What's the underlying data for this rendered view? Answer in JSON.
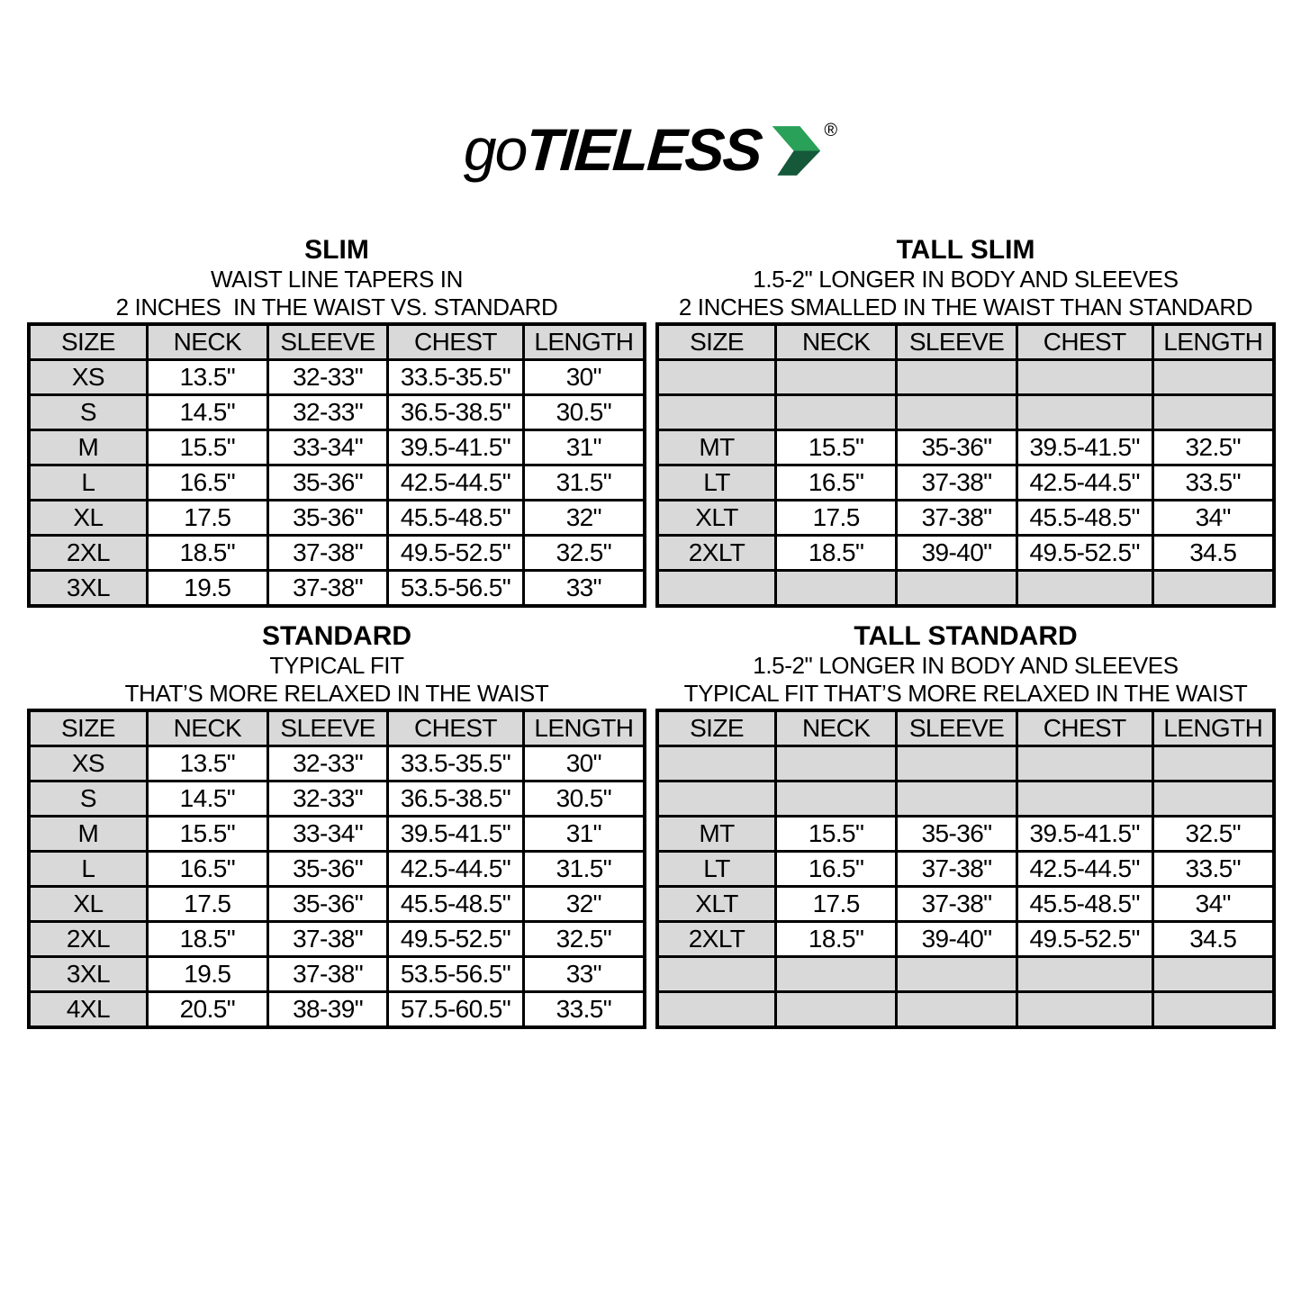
{
  "logo": {
    "go": "go",
    "tieless": "TIELESS",
    "registered": "®"
  },
  "colors": {
    "arrow_top": "#2aa158",
    "arrow_bottom": "#15593a",
    "row_shade": "#d9d9d9",
    "table_border": "#000000"
  },
  "columns": [
    "SIZE",
    "NECK",
    "SLEEVE",
    "CHEST",
    "LENGTH"
  ],
  "sections": [
    {
      "id": "slim",
      "title": "SLIM",
      "subtitle1": "WAIST LINE TAPERS IN",
      "subtitle2": "2 INCHES  IN THE WAIST VS. STANDARD",
      "rows": [
        [
          "XS",
          "13.5\"",
          "32-33\"",
          "33.5-35.5\"",
          "30\""
        ],
        [
          "S",
          "14.5\"",
          "32-33\"",
          "36.5-38.5\"",
          "30.5\""
        ],
        [
          "M",
          "15.5\"",
          "33-34\"",
          "39.5-41.5\"",
          "31\""
        ],
        [
          "L",
          "16.5\"",
          "35-36\"",
          "42.5-44.5\"",
          "31.5\""
        ],
        [
          "XL",
          "17.5",
          "35-36\"",
          "45.5-48.5\"",
          "32\""
        ],
        [
          "2XL",
          "18.5\"",
          "37-38\"",
          "49.5-52.5\"",
          "32.5\""
        ],
        [
          "3XL",
          "19.5",
          "37-38\"",
          "53.5-56.5\"",
          "33\""
        ]
      ]
    },
    {
      "id": "tall-slim",
      "title": "TALL SLIM",
      "subtitle1": "1.5-2\" LONGER IN BODY AND SLEEVES",
      "subtitle2": "2 INCHES SMALLED IN THE WAIST THAN STANDARD",
      "rows": [
        [
          "",
          "",
          "",
          "",
          ""
        ],
        [
          "",
          "",
          "",
          "",
          ""
        ],
        [
          "MT",
          "15.5\"",
          "35-36\"",
          "39.5-41.5\"",
          "32.5\""
        ],
        [
          "LT",
          "16.5\"",
          "37-38\"",
          "42.5-44.5\"",
          "33.5\""
        ],
        [
          "XLT",
          "17.5",
          "37-38\"",
          "45.5-48.5\"",
          "34\""
        ],
        [
          "2XLT",
          "18.5\"",
          "39-40\"",
          "49.5-52.5\"",
          "34.5"
        ],
        [
          "",
          "",
          "",
          "",
          ""
        ]
      ]
    },
    {
      "id": "standard",
      "title": "STANDARD",
      "subtitle1": "TYPICAL FIT",
      "subtitle2": "THAT’S MORE RELAXED IN THE WAIST",
      "rows": [
        [
          "XS",
          "13.5\"",
          "32-33\"",
          "33.5-35.5\"",
          "30\""
        ],
        [
          "S",
          "14.5\"",
          "32-33\"",
          "36.5-38.5\"",
          "30.5\""
        ],
        [
          "M",
          "15.5\"",
          "33-34\"",
          "39.5-41.5\"",
          "31\""
        ],
        [
          "L",
          "16.5\"",
          "35-36\"",
          "42.5-44.5\"",
          "31.5\""
        ],
        [
          "XL",
          "17.5",
          "35-36\"",
          "45.5-48.5\"",
          "32\""
        ],
        [
          "2XL",
          "18.5\"",
          "37-38\"",
          "49.5-52.5\"",
          "32.5\""
        ],
        [
          "3XL",
          "19.5",
          "37-38\"",
          "53.5-56.5\"",
          "33\""
        ],
        [
          "4XL",
          "20.5\"",
          "38-39\"",
          "57.5-60.5\"",
          "33.5\""
        ]
      ]
    },
    {
      "id": "tall-standard",
      "title": "TALL STANDARD",
      "subtitle1": "1.5-2\" LONGER IN BODY AND SLEEVES",
      "subtitle2": "TYPICAL FIT THAT’S MORE RELAXED IN THE WAIST",
      "rows": [
        [
          "",
          "",
          "",
          "",
          ""
        ],
        [
          "",
          "",
          "",
          "",
          ""
        ],
        [
          "MT",
          "15.5\"",
          "35-36\"",
          "39.5-41.5\"",
          "32.5\""
        ],
        [
          "LT",
          "16.5\"",
          "37-38\"",
          "42.5-44.5\"",
          "33.5\""
        ],
        [
          "XLT",
          "17.5",
          "37-38\"",
          "45.5-48.5\"",
          "34\""
        ],
        [
          "2XLT",
          "18.5\"",
          "39-40\"",
          "49.5-52.5\"",
          "34.5"
        ],
        [
          "",
          "",
          "",
          "",
          ""
        ],
        [
          "",
          "",
          "",
          "",
          ""
        ]
      ]
    }
  ]
}
